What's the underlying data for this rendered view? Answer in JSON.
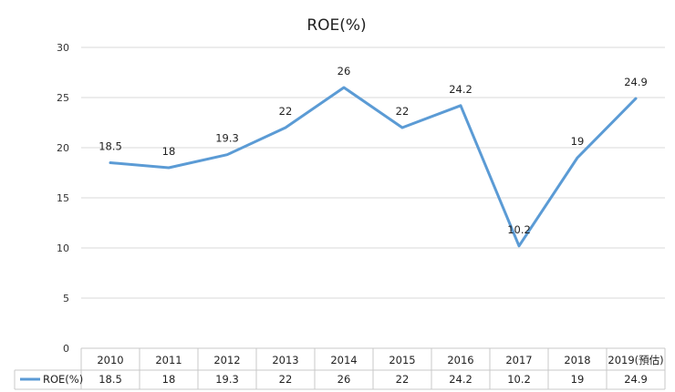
{
  "chart_data": {
    "type": "line",
    "title": "ROE(%)",
    "categories": [
      "2010",
      "2011",
      "2012",
      "2013",
      "2014",
      "2015",
      "2016",
      "2017",
      "2018",
      "2019(預估)"
    ],
    "series": [
      {
        "name": "ROE(%)",
        "values": [
          18.5,
          18,
          19.3,
          22,
          26,
          22,
          24.2,
          10.2,
          19,
          24.9
        ],
        "labels": [
          "18.5",
          "18",
          "19.3",
          "22",
          "26",
          "22",
          "24.2",
          "10.2",
          "19",
          "24.9"
        ],
        "color": "#5b9bd5"
      }
    ],
    "ylim": [
      0,
      30
    ],
    "yticks": [
      "0",
      "5",
      "10",
      "15",
      "20",
      "25",
      "30"
    ],
    "grid": true,
    "data_table": true,
    "legend": "data-table"
  }
}
